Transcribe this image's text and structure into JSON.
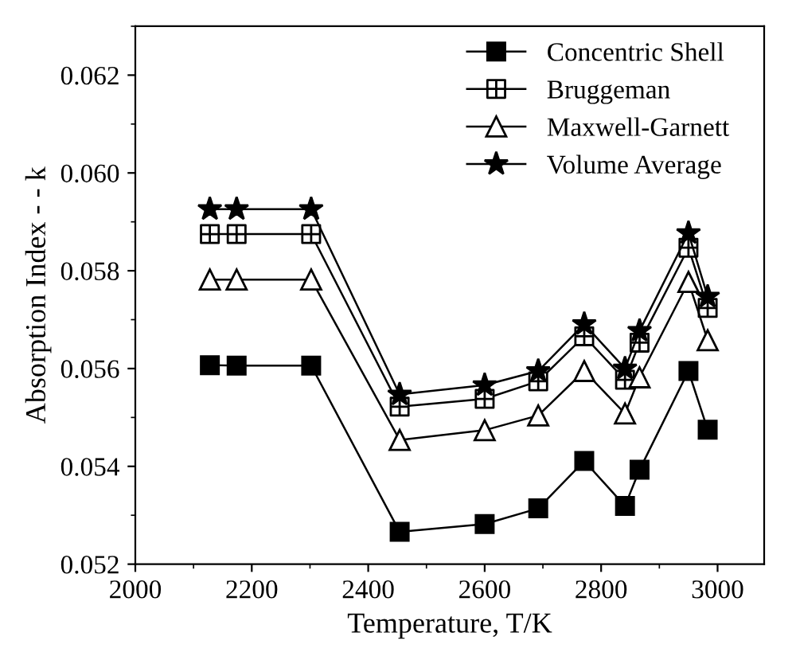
{
  "chart_data": {
    "type": "line",
    "xlabel": "Temperature, T/K",
    "ylabel": "Absorption Index - - k",
    "x": [
      2128,
      2174,
      2302,
      2454,
      2600,
      2692,
      2771,
      2841,
      2866,
      2950,
      2983
    ],
    "series": [
      {
        "name": "Concentric Shell",
        "color": "#000000",
        "marker": "square",
        "values": [
          0.05607,
          0.05606,
          0.05606,
          0.05266,
          0.05282,
          0.05314,
          0.05411,
          0.05319,
          0.05393,
          0.05595,
          0.05475
        ]
      },
      {
        "name": "Bruggeman",
        "color": "#000000",
        "marker": "cross",
        "values": [
          0.05875,
          0.05875,
          0.05875,
          0.05522,
          0.05538,
          0.05574,
          0.05666,
          0.05577,
          0.05653,
          0.05847,
          0.05724
        ]
      },
      {
        "name": "Maxwell-Garnett",
        "color": "#000000",
        "marker": "triangle",
        "values": [
          0.05782,
          0.05782,
          0.05782,
          0.05454,
          0.05474,
          0.05504,
          0.05595,
          0.05508,
          0.05582,
          0.05777,
          0.05658
        ]
      },
      {
        "name": "Volume Average",
        "color": "#000000",
        "marker": "star",
        "values": [
          0.05926,
          0.05926,
          0.05926,
          0.05547,
          0.05566,
          0.05595,
          0.05691,
          0.056,
          0.05677,
          0.05877,
          0.05747
        ]
      }
    ],
    "xlim": [
      2000,
      3080
    ],
    "xticks": [
      2000,
      2200,
      2400,
      2600,
      2800,
      3000
    ],
    "ylim": [
      0.052,
      0.063
    ],
    "yticks": [
      {
        "value": 0.052,
        "label": "0.052"
      },
      {
        "value": 0.054,
        "label": "0.054"
      },
      {
        "value": 0.056,
        "label": "0.056"
      },
      {
        "value": 0.058,
        "label": "0.058"
      },
      {
        "value": 0.06,
        "label": "0.060"
      },
      {
        "value": 0.062,
        "label": "0.062"
      }
    ],
    "legend": "top right",
    "grid": false,
    "line_style": "solid"
  }
}
